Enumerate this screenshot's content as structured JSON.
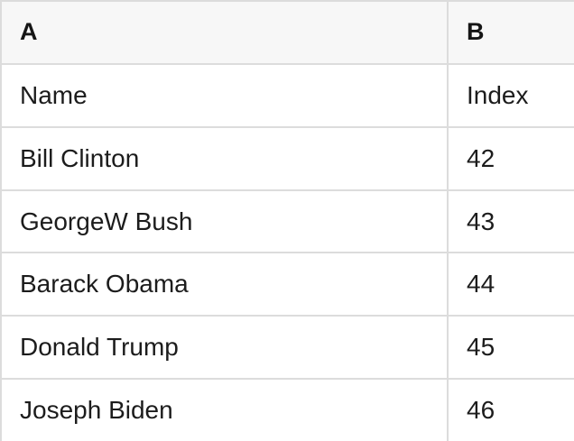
{
  "table": {
    "header": {
      "col_a": "A",
      "col_b": "B"
    },
    "rows": [
      {
        "a": "Name",
        "b": "Index"
      },
      {
        "a": "Bill Clinton",
        "b": "42"
      },
      {
        "a": "GeorgeW Bush",
        "b": "43"
      },
      {
        "a": "Barack Obama",
        "b": "44"
      },
      {
        "a": "Donald Trump",
        "b": "45"
      },
      {
        "a": "Joseph Biden",
        "b": "46"
      }
    ]
  },
  "colors": {
    "header_bg": "#f7f7f7",
    "border": "#dcdcdc",
    "text": "#1c1c1c",
    "background": "#ffffff"
  }
}
